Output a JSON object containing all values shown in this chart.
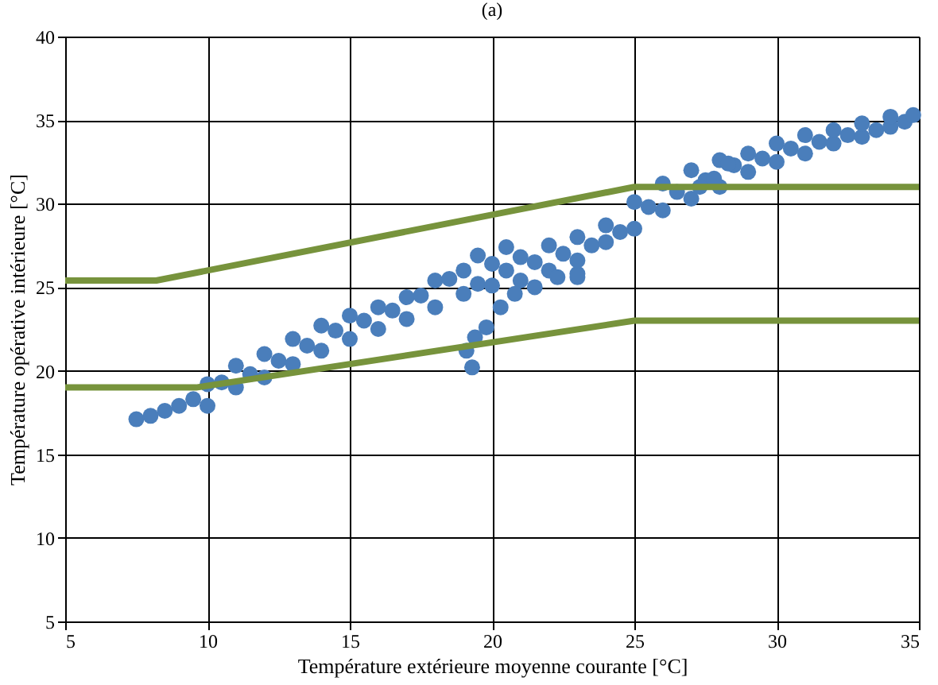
{
  "chart_data": {
    "type": "scatter",
    "title": "(a)",
    "xlabel": "Température extérieure moyenne courante [°C]",
    "ylabel": "Température opérative intérieure [°C]",
    "xlim": [
      5,
      35
    ],
    "xticks": [
      5,
      10,
      15,
      20,
      25,
      30,
      35
    ],
    "ylim": [
      5,
      40
    ],
    "yticks": [
      5,
      10,
      15,
      20,
      25,
      30,
      35,
      40
    ],
    "grid": true,
    "series": [
      {
        "color": "#4a7ebb",
        "marker": "circle",
        "x": [
          7.5,
          8,
          8.5,
          9,
          9.5,
          10,
          10,
          10.5,
          11,
          11,
          11.5,
          12,
          12,
          12.5,
          13,
          13,
          13.5,
          14,
          14,
          14.5,
          15,
          15,
          15.5,
          16,
          16,
          16.5,
          17,
          17,
          17.5,
          18,
          18,
          18.5,
          19,
          19,
          19.5,
          20,
          20,
          20.5,
          21,
          21,
          21.5,
          22,
          22,
          22.5,
          23,
          23,
          23.5,
          24,
          24,
          24.5,
          25,
          25,
          25.5,
          26,
          26,
          26.5,
          27,
          27,
          27.5,
          28,
          28,
          28.5,
          29,
          29,
          29.5,
          30,
          30,
          30.5,
          31,
          31,
          31.5,
          32,
          32,
          32.5,
          33,
          33,
          33.5,
          34,
          34,
          34.5,
          34.8,
          19.3,
          19.1,
          19.4,
          19.8,
          20.3,
          20.8,
          21.5,
          22.3,
          23,
          23,
          19.5,
          20.5,
          27.3,
          27.8,
          28.3
        ],
        "values": [
          17.1,
          17.3,
          17.6,
          17.9,
          18.3,
          17.9,
          19.2,
          19.3,
          19.0,
          20.3,
          19.8,
          19.6,
          21.0,
          20.6,
          20.4,
          21.9,
          21.5,
          21.2,
          22.7,
          22.4,
          21.9,
          23.3,
          23.0,
          22.5,
          23.8,
          23.6,
          23.1,
          24.4,
          24.5,
          23.8,
          25.4,
          25.5,
          24.6,
          26.0,
          25.2,
          25.1,
          26.4,
          26.0,
          25.4,
          26.8,
          26.5,
          26.0,
          27.5,
          27.0,
          25.6,
          28.0,
          27.5,
          27.7,
          28.7,
          28.3,
          28.5,
          30.1,
          29.8,
          29.6,
          31.2,
          30.7,
          30.3,
          32.0,
          31.4,
          31.0,
          32.6,
          32.3,
          31.9,
          33.0,
          32.7,
          32.5,
          33.6,
          33.3,
          33.0,
          34.1,
          33.7,
          33.6,
          34.4,
          34.1,
          34.0,
          34.8,
          34.4,
          34.6,
          35.2,
          34.9,
          35.3,
          20.2,
          21.2,
          22.0,
          22.6,
          23.8,
          24.6,
          25.0,
          25.6,
          25.8,
          26.6,
          26.9,
          27.4,
          31.0,
          31.5,
          32.4
        ]
      },
      {
        "type": "line",
        "marker": "none",
        "color": "#77933c",
        "x": [
          5,
          8.2,
          25,
          35
        ],
        "values": [
          25.4,
          25.4,
          31,
          31
        ]
      },
      {
        "type": "line",
        "marker": "none",
        "color": "#77933c",
        "x": [
          5,
          9.6,
          25,
          35
        ],
        "values": [
          19,
          19,
          23,
          23
        ]
      }
    ]
  }
}
